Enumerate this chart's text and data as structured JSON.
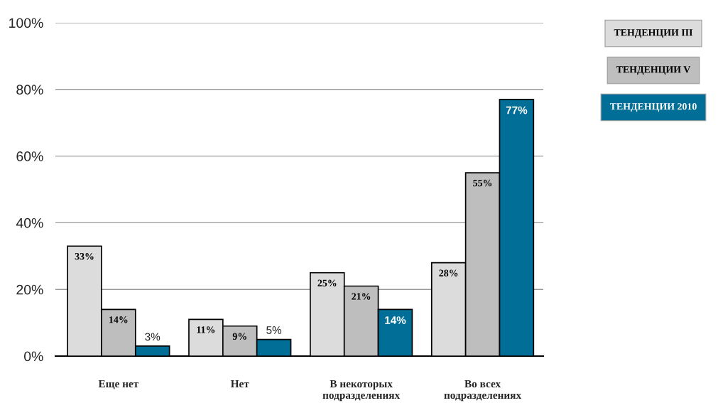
{
  "chart_data": {
    "type": "bar",
    "categories": [
      "Еще нет",
      "Нет",
      "В некоторых подразделениях",
      "Во всех подразделениях"
    ],
    "series": [
      {
        "name": "ТЕНДЕНЦИИ III",
        "color": "#dcdcdc",
        "values": [
          33,
          11,
          25,
          28
        ],
        "value_labels": [
          "33%",
          "11%",
          "25%",
          "28%"
        ]
      },
      {
        "name": "ТЕНДЕНЦИИ V",
        "color": "#bebebe",
        "values": [
          14,
          9,
          21,
          55
        ],
        "value_labels": [
          "14%",
          "9%",
          "21%",
          "55%"
        ]
      },
      {
        "name": "ТЕНДЕНЦИИ 2010",
        "color": "#006e96",
        "values": [
          3,
          5,
          14,
          77
        ],
        "value_labels": [
          "3%",
          "5%",
          "14%",
          "77%"
        ]
      }
    ],
    "ylim": [
      0,
      100
    ],
    "yticks": [
      {
        "value": 0,
        "label": "0%"
      },
      {
        "value": 20,
        "label": "20%"
      },
      {
        "value": 40,
        "label": "40%"
      },
      {
        "value": 60,
        "label": "60%"
      },
      {
        "value": 80,
        "label": "80%"
      },
      {
        "value": 100,
        "label": "100%"
      }
    ],
    "grid": "y",
    "legend": "right"
  }
}
